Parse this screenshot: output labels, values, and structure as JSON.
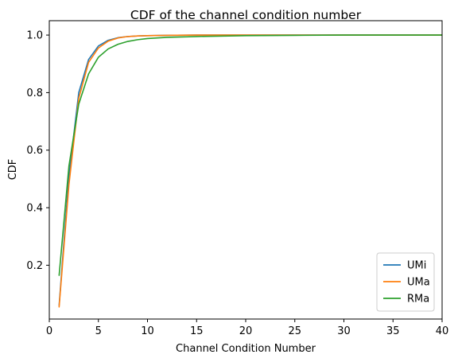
{
  "chart_data": {
    "type": "line",
    "title": "CDF of the channel condition number",
    "xlabel": "Channel Condition Number",
    "ylabel": "CDF",
    "xlim": [
      0,
      40
    ],
    "ylim": [
      0.013,
      1.05
    ],
    "xticks": [
      0,
      5,
      10,
      15,
      20,
      25,
      30,
      35,
      40
    ],
    "yticks": [
      0.2,
      0.4,
      0.6,
      0.8,
      1.0
    ],
    "xtick_labels": [
      "0",
      "5",
      "10",
      "15",
      "20",
      "25",
      "30",
      "35",
      "40"
    ],
    "ytick_labels": [
      "0.2",
      "0.4",
      "0.6",
      "0.8",
      "1.0"
    ],
    "grid": false,
    "legend_position": "lower-right",
    "series": [
      {
        "name": "UMi",
        "color": "#1f77b4",
        "x": [
          1,
          2,
          3,
          4,
          5,
          6,
          7,
          8,
          9,
          10,
          12,
          15,
          20,
          25,
          30,
          35,
          40
        ],
        "y": [
          0.06,
          0.51,
          0.8,
          0.915,
          0.962,
          0.982,
          0.991,
          0.995,
          0.997,
          0.998,
          0.999,
          1.0,
          1.0,
          1.0,
          1.0,
          1.0,
          1.0
        ]
      },
      {
        "name": "UMa",
        "color": "#ff7f0e",
        "x": [
          1,
          2,
          3,
          4,
          5,
          6,
          7,
          8,
          9,
          10,
          12,
          15,
          20,
          25,
          30,
          35,
          40
        ],
        "y": [
          0.055,
          0.48,
          0.78,
          0.905,
          0.955,
          0.979,
          0.99,
          0.995,
          0.997,
          0.998,
          0.999,
          1.0,
          1.0,
          1.0,
          1.0,
          1.0,
          1.0
        ]
      },
      {
        "name": "RMa",
        "color": "#2ca02c",
        "x": [
          1,
          2,
          3,
          4,
          5,
          6,
          7,
          8,
          9,
          10,
          11,
          12,
          15,
          20,
          25,
          30,
          35,
          40
        ],
        "y": [
          0.165,
          0.545,
          0.76,
          0.865,
          0.923,
          0.952,
          0.968,
          0.978,
          0.984,
          0.988,
          0.99,
          0.992,
          0.995,
          0.998,
          0.999,
          1.0,
          1.0,
          1.0
        ]
      }
    ]
  }
}
